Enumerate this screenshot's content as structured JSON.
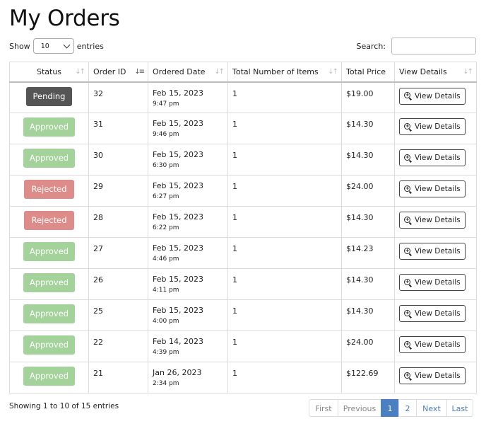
{
  "page": {
    "title": "My Orders"
  },
  "controls": {
    "show_label": "Show",
    "entries_value": "10",
    "entries_label": "entries",
    "search_label": "Search:",
    "search_value": ""
  },
  "table": {
    "headers": {
      "status": "Status",
      "order_id": "Order ID",
      "ordered_date": "Ordered Date",
      "total_items": "Total Number of Items",
      "total_price": "Total Price",
      "view_details": "View Details"
    },
    "rows": [
      {
        "status": "Pending",
        "status_kind": "pending",
        "order_id": "32",
        "date": "Feb 15, 2023",
        "time": "9:47 pm",
        "items": "1",
        "price": "$19.00",
        "action": "View Details"
      },
      {
        "status": "Approved",
        "status_kind": "approved",
        "order_id": "31",
        "date": "Feb 15, 2023",
        "time": "9:46 pm",
        "items": "1",
        "price": "$14.30",
        "action": "View Details"
      },
      {
        "status": "Approved",
        "status_kind": "approved",
        "order_id": "30",
        "date": "Feb 15, 2023",
        "time": "6:30 pm",
        "items": "1",
        "price": "$14.30",
        "action": "View Details"
      },
      {
        "status": "Rejected",
        "status_kind": "rejected",
        "order_id": "29",
        "date": "Feb 15, 2023",
        "time": "6:27 pm",
        "items": "1",
        "price": "$24.00",
        "action": "View Details"
      },
      {
        "status": "Rejected",
        "status_kind": "rejected",
        "order_id": "28",
        "date": "Feb 15, 2023",
        "time": "6:22 pm",
        "items": "1",
        "price": "$14.30",
        "action": "View Details"
      },
      {
        "status": "Approved",
        "status_kind": "approved",
        "order_id": "27",
        "date": "Feb 15, 2023",
        "time": "4:46 pm",
        "items": "1",
        "price": "$14.23",
        "action": "View Details"
      },
      {
        "status": "Approved",
        "status_kind": "approved",
        "order_id": "26",
        "date": "Feb 15, 2023",
        "time": "4:11 pm",
        "items": "1",
        "price": "$14.30",
        "action": "View Details"
      },
      {
        "status": "Approved",
        "status_kind": "approved",
        "order_id": "25",
        "date": "Feb 15, 2023",
        "time": "4:00 pm",
        "items": "1",
        "price": "$14.30",
        "action": "View Details"
      },
      {
        "status": "Approved",
        "status_kind": "approved",
        "order_id": "22",
        "date": "Feb 14, 2023",
        "time": "4:39 pm",
        "items": "1",
        "price": "$24.00",
        "action": "View Details"
      },
      {
        "status": "Approved",
        "status_kind": "approved",
        "order_id": "21",
        "date": "Jan 26, 2023",
        "time": "2:34 pm",
        "items": "1",
        "price": "$122.69",
        "action": "View Details"
      }
    ]
  },
  "footer": {
    "info": "Showing 1 to 10 of 15 entries",
    "pagination": {
      "first": "First",
      "previous": "Previous",
      "pages": [
        "1",
        "2"
      ],
      "next": "Next",
      "last": "Last"
    }
  },
  "colors": {
    "pending": "#555555",
    "approved": "#a3d29a",
    "rejected": "#dd8c89",
    "accent": "#4a7fc1"
  },
  "icons": {
    "sort": "sort-arrows-icon",
    "sort_active": "sort-desc-icon",
    "view": "zoom-in-icon",
    "select": "chevron-down-icon"
  }
}
